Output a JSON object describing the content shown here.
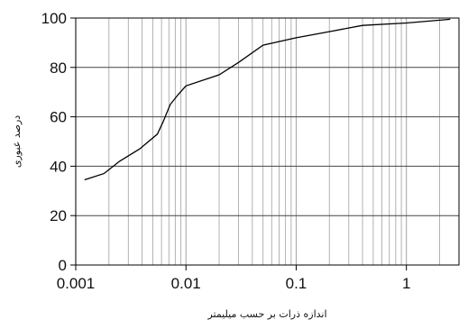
{
  "chart_data": {
    "type": "line",
    "title": "",
    "xlabel": "اندازه ذرات بر حسب میلیمتر",
    "ylabel": "درصد عبوری",
    "x_scale": "log",
    "xlim": [
      0.001,
      3
    ],
    "ylim": [
      0,
      100
    ],
    "x_ticks": [
      "0.001",
      "0.01",
      "0.1",
      "1"
    ],
    "y_ticks": [
      "0",
      "20",
      "40",
      "60",
      "80",
      "100"
    ],
    "grid": true,
    "legend": "none",
    "line_color": "#000000",
    "grid_color": "#aaaaaa",
    "series": [
      {
        "x": [
          0.0012,
          0.0018,
          0.0025,
          0.0038,
          0.0055,
          0.0062,
          0.0072,
          0.0085,
          0.01,
          0.02,
          0.03,
          0.05,
          0.1,
          0.2,
          0.4,
          1.0,
          2.5
        ],
        "y": [
          34.5,
          37,
          42,
          47,
          53,
          58,
          65,
          69,
          72.5,
          77,
          82,
          89,
          92,
          94.5,
          97,
          98,
          99.5
        ]
      }
    ]
  }
}
